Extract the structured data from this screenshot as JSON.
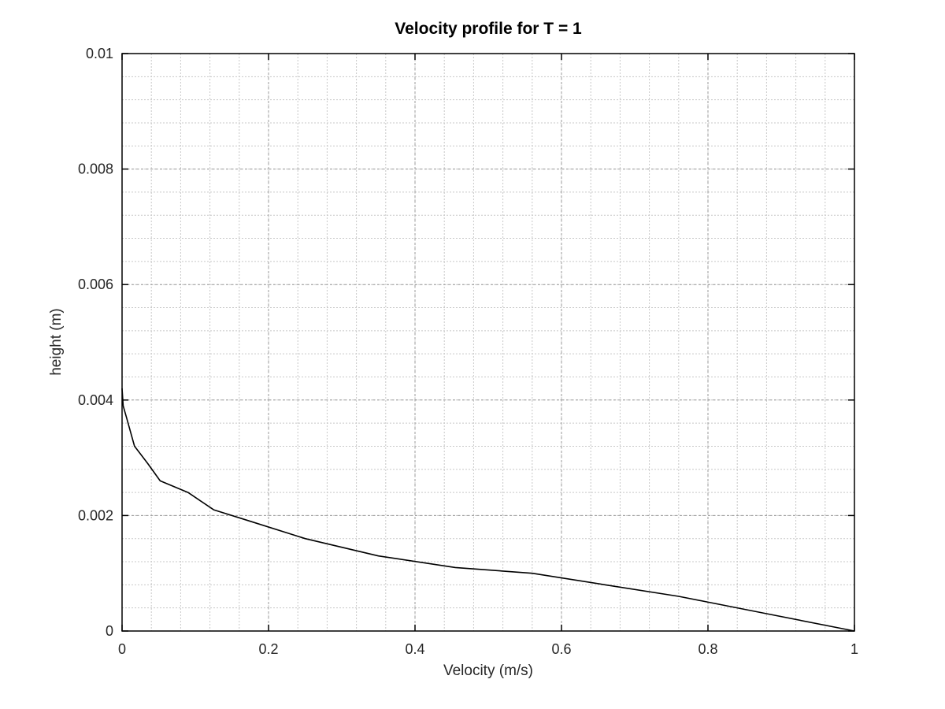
{
  "chart_data": {
    "type": "line",
    "title": "Velocity profile for T = 1",
    "xlabel": "Velocity (m/s)",
    "ylabel": "height (m)",
    "xlim": [
      0,
      1
    ],
    "ylim": [
      0,
      0.01
    ],
    "xticks": [
      0,
      0.2,
      0.4,
      0.6,
      0.8,
      1
    ],
    "xtick_labels": [
      "0",
      "0.2",
      "0.4",
      "0.6",
      "0.8",
      "1"
    ],
    "yticks": [
      0,
      0.002,
      0.004,
      0.006,
      0.008,
      0.01
    ],
    "ytick_labels": [
      "0",
      "0.002",
      "0.004",
      "0.006",
      "0.008",
      "0.01"
    ],
    "x_minor_step": 0.04,
    "y_minor_step": 0.0004,
    "grid": "on (major and minor, dotted)",
    "line_color": "#000000",
    "series": [
      {
        "x": [
          1.0,
          0.88,
          0.76,
          0.66,
          0.56,
          0.455,
          0.35,
          0.25,
          0.175,
          0.125,
          0.09,
          0.052,
          0.035,
          0.017,
          0.006,
          0.0015,
          0.0
        ],
        "y": [
          0.0,
          0.0003,
          0.0006,
          0.0008,
          0.001,
          0.0011,
          0.0013,
          0.0016,
          0.0019,
          0.0021,
          0.0024,
          0.0026,
          0.0029,
          0.0032,
          0.0037,
          0.0039,
          0.0042
        ]
      }
    ]
  }
}
